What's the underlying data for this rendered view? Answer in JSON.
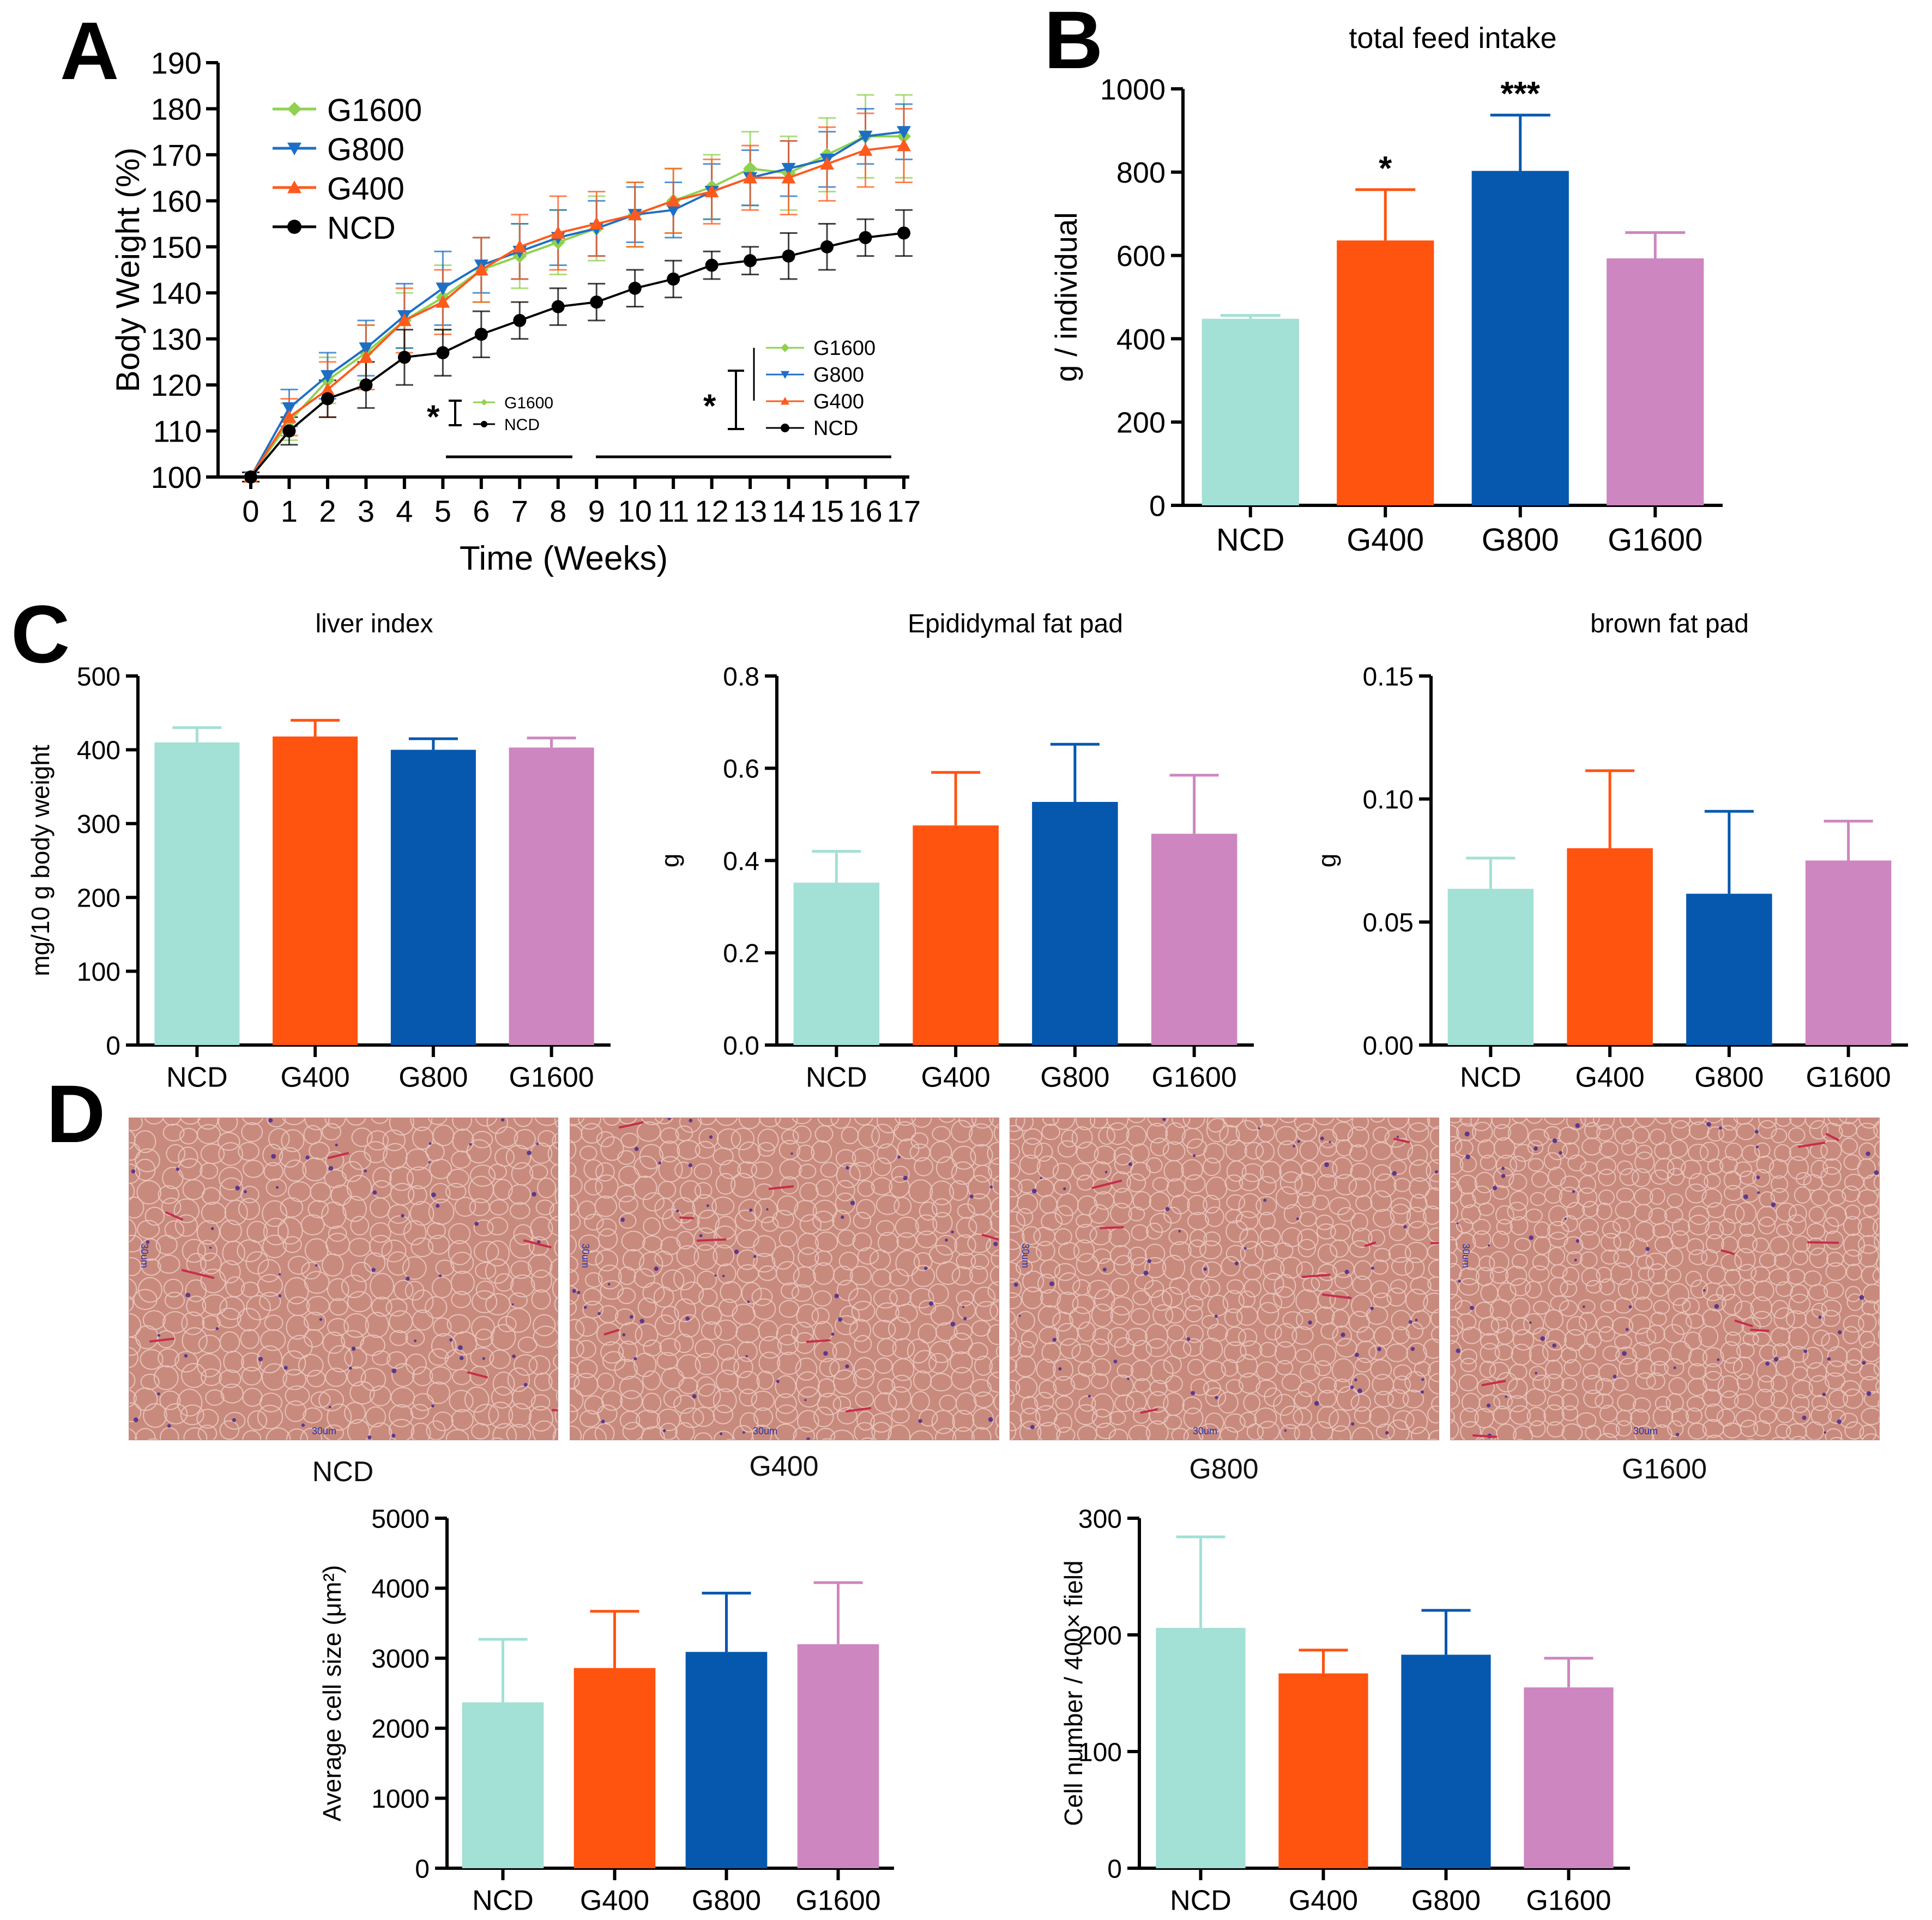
{
  "colors": {
    "NCD": "#a3e0d5",
    "G400": "#ff5310",
    "G800": "#0558ad",
    "G1600": "#cd86bf",
    "line_G1600": "#8fd14f",
    "line_G800": "#1e6fc4",
    "line_G400": "#ff5a1e",
    "line_NCD": "#000000",
    "tissue": "#c98a7e",
    "membrane": "#e6c2b9",
    "nuclei": "#5b3a8c",
    "vessel": "#c62d4a"
  },
  "panels": {
    "A": "A",
    "B": "B",
    "C": "C",
    "D": "D"
  },
  "chart_data": [
    {
      "id": "A",
      "type": "line",
      "title": "",
      "xlabel": "Time (Weeks)",
      "ylabel": "Body Weight (%)",
      "xlim": [
        0,
        17
      ],
      "ylim": [
        100,
        190
      ],
      "yticks": [
        100,
        110,
        120,
        130,
        140,
        150,
        160,
        170,
        180,
        190
      ],
      "x": [
        0,
        1,
        2,
        3,
        4,
        5,
        6,
        7,
        8,
        9,
        10,
        11,
        12,
        13,
        14,
        15,
        16,
        17
      ],
      "series": [
        {
          "name": "G1600",
          "marker": "diamond",
          "values": [
            100,
            112,
            121,
            127,
            134,
            139,
            145,
            148,
            151,
            154,
            157,
            160,
            163,
            167,
            166,
            170,
            174,
            174
          ],
          "errors": [
            1,
            4,
            5,
            6,
            6,
            7,
            7,
            7,
            7,
            7,
            7,
            7,
            7,
            8,
            8,
            8,
            9,
            9
          ]
        },
        {
          "name": "G800",
          "marker": "triangle-down",
          "values": [
            100,
            115,
            122,
            128,
            135,
            141,
            146,
            149,
            152,
            154,
            157,
            158,
            162,
            165,
            167,
            169,
            174,
            175
          ],
          "errors": [
            1,
            4,
            5,
            6,
            7,
            8,
            6,
            6,
            6,
            6,
            6,
            6,
            6,
            6,
            6,
            6,
            6,
            6
          ]
        },
        {
          "name": "G400",
          "marker": "triangle-up",
          "values": [
            100,
            113,
            119,
            126,
            134,
            138,
            145,
            150,
            153,
            155,
            157,
            160,
            162,
            165,
            165,
            168,
            171,
            172
          ],
          "errors": [
            1,
            4,
            6,
            7,
            7,
            7,
            7,
            7,
            8,
            7,
            7,
            7,
            7,
            7,
            8,
            8,
            8,
            8
          ]
        },
        {
          "name": "NCD",
          "marker": "circle",
          "values": [
            100,
            110,
            117,
            120,
            126,
            127,
            131,
            134,
            137,
            138,
            141,
            143,
            146,
            147,
            148,
            150,
            152,
            153
          ],
          "errors": [
            1,
            3,
            4,
            5,
            6,
            5,
            5,
            4,
            4,
            4,
            4,
            4,
            3,
            3,
            5,
            5,
            4,
            5
          ]
        }
      ],
      "annotations": {
        "left": {
          "star": "*",
          "items": [
            "G1600",
            "NCD"
          ]
        },
        "right": {
          "star": "*",
          "items": [
            "G1600",
            "G800",
            "G400",
            "NCD"
          ]
        }
      }
    },
    {
      "id": "B",
      "type": "bar",
      "title": "total feed intake",
      "xlabel": "",
      "ylabel": "g / individual",
      "ylim": [
        0,
        1000
      ],
      "yticks": [
        0,
        200,
        400,
        600,
        800,
        1000
      ],
      "categories": [
        "NCD",
        "G400",
        "G800",
        "G1600"
      ],
      "values": [
        448,
        636,
        803,
        593
      ],
      "errors": [
        8,
        122,
        134,
        62
      ],
      "significance": [
        "",
        "*",
        "***",
        ""
      ]
    },
    {
      "id": "C1",
      "type": "bar",
      "title": "liver index",
      "xlabel": "",
      "ylabel": "mg/10 g body weight",
      "ylim": [
        0,
        500
      ],
      "yticks": [
        0,
        100,
        200,
        300,
        400,
        500
      ],
      "categories": [
        "NCD",
        "G400",
        "G800",
        "G1600"
      ],
      "values": [
        410,
        418,
        400,
        403
      ],
      "errors": [
        20,
        22,
        15,
        13
      ]
    },
    {
      "id": "C2",
      "type": "bar",
      "title": "Epididymal fat pad",
      "xlabel": "",
      "ylabel": "g",
      "ylim": [
        0,
        0.8
      ],
      "yticks": [
        "0.0",
        "0.2",
        "0.4",
        "0.6",
        "0.8"
      ],
      "categories": [
        "NCD",
        "G400",
        "G800",
        "G1600"
      ],
      "values": [
        0.352,
        0.476,
        0.527,
        0.458
      ],
      "errors": [
        0.068,
        0.115,
        0.125,
        0.127
      ]
    },
    {
      "id": "C3",
      "type": "bar",
      "title": "brown fat pad",
      "xlabel": "",
      "ylabel": "g",
      "ylim": [
        0,
        0.15
      ],
      "yticks": [
        "0.00",
        "0.05",
        "0.10",
        "0.15"
      ],
      "categories": [
        "NCD",
        "G400",
        "G800",
        "G1600"
      ],
      "values": [
        0.0635,
        0.08,
        0.0615,
        0.075
      ],
      "errors": [
        0.0125,
        0.0315,
        0.0335,
        0.016
      ]
    },
    {
      "id": "D1",
      "type": "bar",
      "title": "",
      "xlabel": "",
      "ylabel": "Average cell size (μm²)",
      "ylim": [
        0,
        5000
      ],
      "yticks": [
        0,
        1000,
        2000,
        3000,
        4000,
        5000
      ],
      "categories": [
        "NCD",
        "G400",
        "G800",
        "G1600"
      ],
      "values": [
        2370,
        2860,
        3090,
        3200
      ],
      "errors": [
        900,
        810,
        840,
        880
      ]
    },
    {
      "id": "D2",
      "type": "bar",
      "title": "",
      "xlabel": "",
      "ylabel": "Cell number / 400× field",
      "ylim": [
        0,
        300
      ],
      "yticks": [
        0,
        100,
        200,
        300
      ],
      "categories": [
        "NCD",
        "G400",
        "G800",
        "G1600"
      ],
      "values": [
        206,
        167,
        183,
        155
      ],
      "errors": [
        78,
        20,
        38,
        25
      ]
    }
  ],
  "micrographs": [
    {
      "label": "NCD",
      "scale": "30um"
    },
    {
      "label": "G400",
      "scale": "30um"
    },
    {
      "label": "G800",
      "scale": "30um"
    },
    {
      "label": "G1600",
      "scale": "30um"
    }
  ]
}
